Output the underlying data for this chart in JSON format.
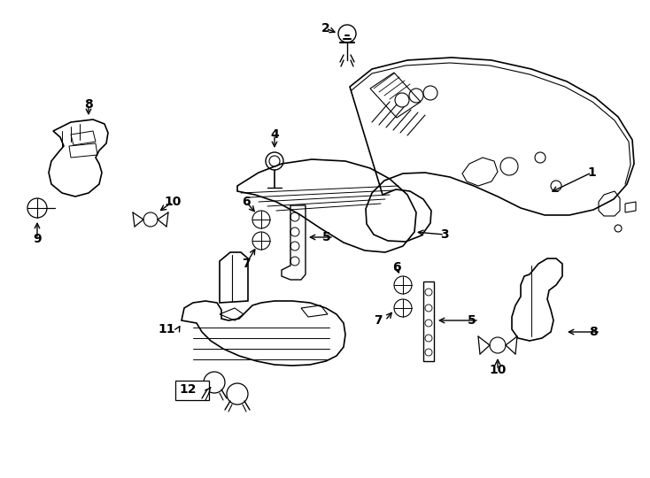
{
  "background_color": "#ffffff",
  "line_color": "#000000",
  "figure_width": 7.34,
  "figure_height": 5.4,
  "dpi": 100
}
